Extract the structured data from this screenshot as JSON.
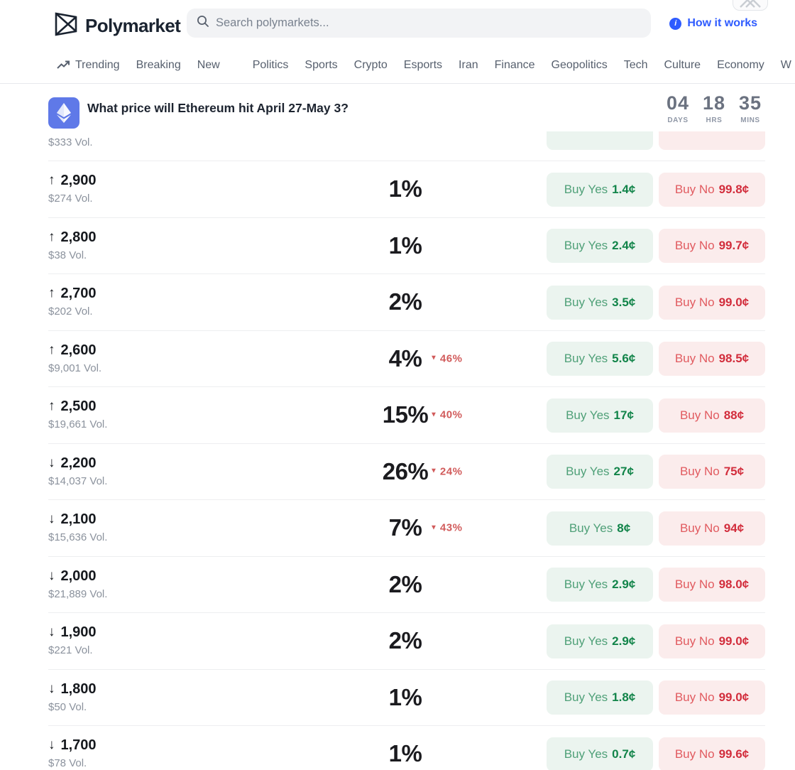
{
  "header": {
    "logo_text": "Polymarket",
    "search_placeholder": "Search polymarkets...",
    "how_it_works_label": "How it works"
  },
  "nav": {
    "items": [
      {
        "label": "Trending"
      },
      {
        "label": "Breaking"
      },
      {
        "label": "New"
      },
      {
        "label": "Politics"
      },
      {
        "label": "Sports"
      },
      {
        "label": "Crypto"
      },
      {
        "label": "Esports"
      },
      {
        "label": "Iran"
      },
      {
        "label": "Finance"
      },
      {
        "label": "Geopolitics"
      },
      {
        "label": "Tech"
      },
      {
        "label": "Culture"
      },
      {
        "label": "Economy"
      },
      {
        "label": "W"
      }
    ]
  },
  "market": {
    "title": "What price will Ethereum hit April 27-May 3?",
    "countdown": [
      {
        "value": "04",
        "unit": "DAYS"
      },
      {
        "value": "18",
        "unit": "HRS"
      },
      {
        "value": "35",
        "unit": "MINS"
      }
    ]
  },
  "outcomes": {
    "buy_yes_prefix": "Buy Yes",
    "buy_no_prefix": "Buy No",
    "partial_top_row": {
      "volume": "$333 Vol."
    },
    "rows": [
      {
        "direction": "up",
        "target": "2,900",
        "volume": "$274 Vol.",
        "chance": "1%",
        "change": "",
        "yes_price": "1.4¢",
        "no_price": "99.8¢"
      },
      {
        "direction": "up",
        "target": "2,800",
        "volume": "$38 Vol.",
        "chance": "1%",
        "change": "",
        "yes_price": "2.4¢",
        "no_price": "99.7¢"
      },
      {
        "direction": "up",
        "target": "2,700",
        "volume": "$202 Vol.",
        "chance": "2%",
        "change": "",
        "yes_price": "3.5¢",
        "no_price": "99.0¢"
      },
      {
        "direction": "up",
        "target": "2,600",
        "volume": "$9,001 Vol.",
        "chance": "4%",
        "change": "46%",
        "yes_price": "5.6¢",
        "no_price": "98.5¢"
      },
      {
        "direction": "up",
        "target": "2,500",
        "volume": "$19,661 Vol.",
        "chance": "15%",
        "change": "40%",
        "yes_price": "17¢",
        "no_price": "88¢"
      },
      {
        "direction": "down",
        "target": "2,200",
        "volume": "$14,037 Vol.",
        "chance": "26%",
        "change": "24%",
        "yes_price": "27¢",
        "no_price": "75¢"
      },
      {
        "direction": "down",
        "target": "2,100",
        "volume": "$15,636 Vol.",
        "chance": "7%",
        "change": "43%",
        "yes_price": "8¢",
        "no_price": "94¢"
      },
      {
        "direction": "down",
        "target": "2,000",
        "volume": "$21,889 Vol.",
        "chance": "2%",
        "change": "",
        "yes_price": "2.9¢",
        "no_price": "98.0¢"
      },
      {
        "direction": "down",
        "target": "1,900",
        "volume": "$221 Vol.",
        "chance": "2%",
        "change": "",
        "yes_price": "2.9¢",
        "no_price": "99.0¢"
      },
      {
        "direction": "down",
        "target": "1,800",
        "volume": "$50 Vol.",
        "chance": "1%",
        "change": "",
        "yes_price": "1.8¢",
        "no_price": "99.0¢"
      },
      {
        "direction": "down",
        "target": "1,700",
        "volume": "$78 Vol.",
        "chance": "1%",
        "change": "",
        "yes_price": "0.7¢",
        "no_price": "99.6¢"
      }
    ]
  },
  "colors": {
    "accent_blue": "#2e5bff",
    "eth_brand": "#5f79e8",
    "yes_green": "#118449",
    "yes_bg": "#ebf4ef",
    "no_red": "#d22d3c",
    "no_bg": "#fbecec",
    "change_red": "#d15b5b"
  }
}
